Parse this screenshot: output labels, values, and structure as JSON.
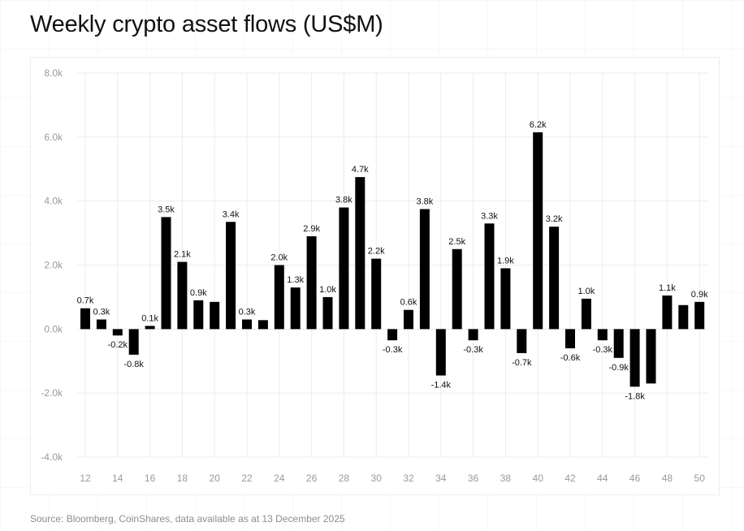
{
  "title": "Weekly crypto asset flows (US$M)",
  "source": "Source: Bloomberg, CoinShares, data available as at 13 December 2025",
  "chart_data": {
    "type": "bar",
    "title": "Weekly crypto asset flows (US$M)",
    "categories": [
      "12",
      "13",
      "14",
      "15",
      "16",
      "17",
      "18",
      "19",
      "20",
      "21",
      "22",
      "23",
      "24",
      "25",
      "26",
      "27",
      "28",
      "29",
      "30",
      "31",
      "32",
      "33",
      "34",
      "35",
      "36",
      "37",
      "38",
      "39",
      "40",
      "41",
      "42",
      "43",
      "44",
      "45",
      "46",
      "47",
      "48",
      "49",
      "50"
    ],
    "x_tick_labels": [
      "12",
      "14",
      "16",
      "18",
      "20",
      "22",
      "24",
      "26",
      "28",
      "30",
      "32",
      "34",
      "36",
      "38",
      "40",
      "42",
      "44",
      "46",
      "48",
      "50"
    ],
    "values": [
      0.65,
      0.3,
      -0.2,
      -0.8,
      0.1,
      3.5,
      2.1,
      0.9,
      0.85,
      3.35,
      0.3,
      0.28,
      2.0,
      1.3,
      2.9,
      1.0,
      3.8,
      4.75,
      2.2,
      -0.35,
      0.6,
      3.75,
      -1.45,
      2.5,
      -0.35,
      3.3,
      1.9,
      -0.75,
      6.15,
      3.2,
      -0.6,
      0.95,
      -0.35,
      -0.9,
      -1.8,
      -1.7,
      1.05,
      0.75,
      0.85
    ],
    "data_labels": [
      "0.7k",
      "0.3k",
      "-0.2k",
      "-0.8k",
      "0.1k",
      "3.5k",
      "2.1k",
      "0.9k",
      "",
      "3.4k",
      "0.3k",
      "",
      "2.0k",
      "1.3k",
      "2.9k",
      "1.0k",
      "3.8k",
      "4.7k",
      "2.2k",
      "-0.3k",
      "0.6k",
      "3.8k",
      "-1.4k",
      "2.5k",
      "-0.3k",
      "3.3k",
      "1.9k",
      "-0.7k",
      "6.2k",
      "3.2k",
      "-0.6k",
      "1.0k",
      "-0.3k",
      "-0.9k",
      "-1.8k",
      "",
      "1.1k",
      "",
      "0.9k"
    ],
    "y_ticks": [
      -4,
      -2,
      0,
      2,
      4,
      6,
      8
    ],
    "y_tick_labels": [
      "-4.0k",
      "-2.0k",
      "0.0k",
      "2.0k",
      "4.0k",
      "6.0k",
      "8.0k"
    ],
    "ylim": [
      -4,
      8
    ],
    "units": "thousand US$M",
    "grid": true,
    "bar_color": "#000000",
    "grid_color": "#ebebeb",
    "xlabel": "",
    "ylabel": ""
  }
}
